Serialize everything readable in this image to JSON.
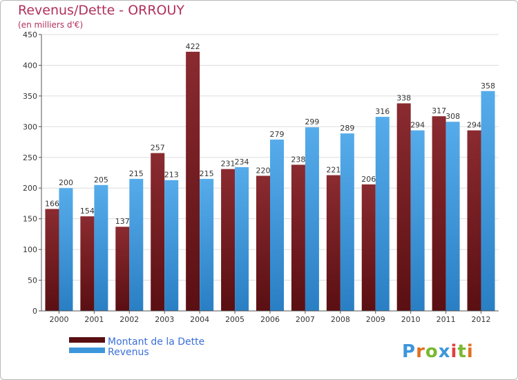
{
  "chart_data": {
    "type": "bar",
    "title": "Revenus/Dette - ORROUY",
    "subtitle": "(en milliers d'€)",
    "categories": [
      "2000",
      "2001",
      "2002",
      "2003",
      "2004",
      "2005",
      "2006",
      "2007",
      "2008",
      "2009",
      "2010",
      "2011",
      "2012"
    ],
    "series": [
      {
        "name": "Montant de la Dette",
        "color": "#7a1f24",
        "values": [
          166,
          154,
          137,
          257,
          422,
          231,
          220,
          238,
          221,
          206,
          338,
          317,
          294
        ]
      },
      {
        "name": "Revenus",
        "color": "#3c96dc",
        "values": [
          200,
          205,
          215,
          213,
          215,
          234,
          279,
          299,
          289,
          316,
          294,
          308,
          358
        ]
      }
    ],
    "ylim": [
      0,
      450
    ],
    "yticks": [
      0,
      50,
      100,
      150,
      200,
      250,
      300,
      350,
      400,
      450
    ],
    "grid": true,
    "legend": "bottom-left"
  },
  "watermark": "Proxiti"
}
